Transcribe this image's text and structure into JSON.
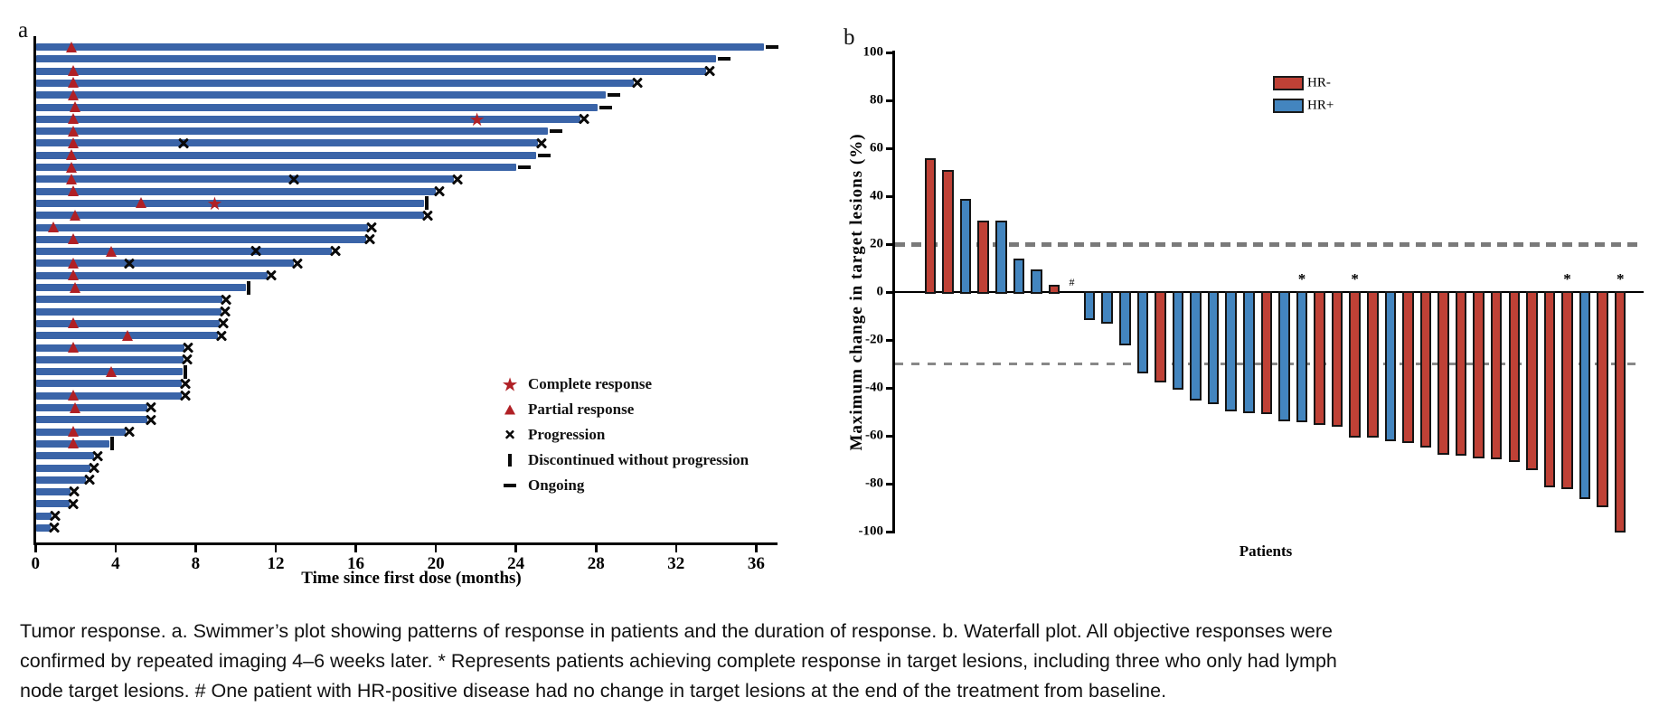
{
  "panel_a_label": "a",
  "panel_b_label": "b",
  "colors": {
    "swim_bar_blue": "#3a64a8",
    "response_red": "#b02025",
    "marker_black": "#0a0a0a",
    "wf_red": "#bf4136",
    "wf_blue": "#4385bf",
    "ref_line_gray": "#7a7a7a",
    "axis_black": "#000000"
  },
  "chart_data": [
    {
      "type": "swimmer",
      "title": "",
      "xlabel": "Time since first dose (months)",
      "x_ticks": [
        0,
        4,
        8,
        12,
        16,
        20,
        24,
        28,
        32,
        36
      ],
      "xlim": [
        0,
        37
      ],
      "legend_position": "right-middle",
      "legend": [
        {
          "icon": "star",
          "label": "Complete response"
        },
        {
          "icon": "triangle",
          "label": "Partial response"
        },
        {
          "icon": "x",
          "label": "Progression"
        },
        {
          "icon": "bar-vertical",
          "label": "Discontinued without progression"
        },
        {
          "icon": "dash",
          "label": "Ongoing"
        }
      ],
      "rows": [
        {
          "len": 36.4,
          "pr": 1.8,
          "cr": null,
          "xs": [],
          "end": "ongoing"
        },
        {
          "len": 34.0,
          "pr": null,
          "cr": null,
          "xs": [],
          "end": "ongoing"
        },
        {
          "len": 33.5,
          "pr": 1.9,
          "cr": null,
          "xs": [],
          "end": "x"
        },
        {
          "len": 29.9,
          "pr": 1.9,
          "cr": null,
          "xs": [],
          "end": "x"
        },
        {
          "len": 28.5,
          "pr": 1.9,
          "cr": null,
          "xs": [],
          "end": "ongoing"
        },
        {
          "len": 28.1,
          "pr": 2.0,
          "cr": null,
          "xs": [],
          "end": "ongoing"
        },
        {
          "len": 27.2,
          "pr": 1.9,
          "cr": 22.1,
          "xs": [],
          "end": "x"
        },
        {
          "len": 25.6,
          "pr": 1.9,
          "cr": null,
          "xs": [],
          "end": "ongoing"
        },
        {
          "len": 25.1,
          "pr": 1.9,
          "cr": null,
          "xs": [
            7.4
          ],
          "end": "x"
        },
        {
          "len": 25.0,
          "pr": 1.8,
          "cr": null,
          "xs": [],
          "end": "ongoing"
        },
        {
          "len": 24.0,
          "pr": 1.8,
          "cr": null,
          "xs": [],
          "end": "ongoing"
        },
        {
          "len": 20.9,
          "pr": 1.8,
          "cr": null,
          "xs": [
            12.9
          ],
          "end": "x"
        },
        {
          "len": 20.0,
          "pr": 1.9,
          "cr": null,
          "xs": [],
          "end": "x"
        },
        {
          "len": 19.4,
          "pr": 5.3,
          "cr": 9.0,
          "xs": [],
          "end": "disc"
        },
        {
          "len": 19.4,
          "pr": 2.0,
          "cr": null,
          "xs": [],
          "end": "x"
        },
        {
          "len": 16.6,
          "pr": 0.9,
          "cr": null,
          "xs": [],
          "end": "x"
        },
        {
          "len": 16.5,
          "pr": 1.9,
          "cr": null,
          "xs": [],
          "end": "x"
        },
        {
          "len": 14.8,
          "pr": 3.8,
          "cr": null,
          "xs": [
            11.0
          ],
          "end": "x"
        },
        {
          "len": 12.9,
          "pr": 1.9,
          "cr": null,
          "xs": [
            4.7
          ],
          "end": "x"
        },
        {
          "len": 11.6,
          "pr": 1.9,
          "cr": null,
          "xs": [],
          "end": "x"
        },
        {
          "len": 10.5,
          "pr": 2.0,
          "cr": null,
          "xs": [],
          "end": "disc"
        },
        {
          "len": 9.35,
          "pr": null,
          "cr": null,
          "xs": [],
          "end": "x"
        },
        {
          "len": 9.3,
          "pr": null,
          "cr": null,
          "xs": [],
          "end": "x"
        },
        {
          "len": 9.2,
          "pr": 1.9,
          "cr": null,
          "xs": [],
          "end": "x"
        },
        {
          "len": 9.1,
          "pr": 4.6,
          "cr": null,
          "xs": [],
          "end": "x"
        },
        {
          "len": 7.45,
          "pr": 1.9,
          "cr": null,
          "xs": [],
          "end": "x"
        },
        {
          "len": 7.4,
          "pr": null,
          "cr": null,
          "xs": [],
          "end": "x"
        },
        {
          "len": 7.35,
          "pr": 3.8,
          "cr": null,
          "xs": [],
          "end": "disc"
        },
        {
          "len": 7.3,
          "pr": null,
          "cr": null,
          "xs": [],
          "end": "x"
        },
        {
          "len": 7.3,
          "pr": 1.9,
          "cr": null,
          "xs": [],
          "end": "x"
        },
        {
          "len": 5.6,
          "pr": 2.0,
          "cr": null,
          "xs": [],
          "end": "x"
        },
        {
          "len": 5.6,
          "pr": null,
          "cr": null,
          "xs": [],
          "end": "x"
        },
        {
          "len": 4.5,
          "pr": 1.9,
          "cr": null,
          "xs": [],
          "end": "x"
        },
        {
          "len": 3.7,
          "pr": 1.9,
          "cr": null,
          "xs": [],
          "end": "disc"
        },
        {
          "len": 2.9,
          "pr": null,
          "cr": null,
          "xs": [],
          "end": "x"
        },
        {
          "len": 2.75,
          "pr": null,
          "cr": null,
          "xs": [],
          "end": "x"
        },
        {
          "len": 2.5,
          "pr": null,
          "cr": null,
          "xs": [],
          "end": "x"
        },
        {
          "len": 1.75,
          "pr": null,
          "cr": null,
          "xs": [],
          "end": "x"
        },
        {
          "len": 1.7,
          "pr": null,
          "cr": null,
          "xs": [],
          "end": "x"
        },
        {
          "len": 0.8,
          "pr": null,
          "cr": null,
          "xs": [],
          "end": "x"
        },
        {
          "len": 0.75,
          "pr": null,
          "cr": null,
          "xs": [],
          "end": "x"
        }
      ]
    },
    {
      "type": "bar",
      "title": "",
      "xlabel": "Patients",
      "ylabel": "Maximum change in target lesions (%)",
      "ylim": [
        -100,
        100
      ],
      "y_ticks": [
        100,
        80,
        60,
        40,
        20,
        0,
        -20,
        -40,
        -60,
        -80,
        -100
      ],
      "reference_lines": [
        20,
        -30
      ],
      "legend_position": "top-right-inside",
      "legend": [
        {
          "label": "HR-",
          "color": "#bf4136"
        },
        {
          "label": "HR+",
          "color": "#4385bf"
        }
      ],
      "annotations": {
        "star_symbol": "*",
        "hash_symbol": "#"
      },
      "bars": [
        {
          "v": 56,
          "group": "HR-"
        },
        {
          "v": 51,
          "group": "HR-"
        },
        {
          "v": 39,
          "group": "HR+"
        },
        {
          "v": 30,
          "group": "HR-"
        },
        {
          "v": 30,
          "group": "HR+"
        },
        {
          "v": 14,
          "group": "HR+"
        },
        {
          "v": 9.5,
          "group": "HR+"
        },
        {
          "v": 3,
          "group": "HR-"
        },
        {
          "v": 0,
          "group": "HR+",
          "hash": true
        },
        {
          "v": -11.5,
          "group": "HR+"
        },
        {
          "v": -13,
          "group": "HR+"
        },
        {
          "v": -22,
          "group": "HR+"
        },
        {
          "v": -33.5,
          "group": "HR+"
        },
        {
          "v": -37.5,
          "group": "HR-"
        },
        {
          "v": -40.5,
          "group": "HR+"
        },
        {
          "v": -45,
          "group": "HR+"
        },
        {
          "v": -46.5,
          "group": "HR+"
        },
        {
          "v": -49.5,
          "group": "HR+"
        },
        {
          "v": -50,
          "group": "HR+"
        },
        {
          "v": -50.5,
          "group": "HR-"
        },
        {
          "v": -53.5,
          "group": "HR+"
        },
        {
          "v": -54,
          "group": "HR+",
          "star": true
        },
        {
          "v": -55,
          "group": "HR-"
        },
        {
          "v": -56,
          "group": "HR-"
        },
        {
          "v": -60.5,
          "group": "HR-",
          "star": true
        },
        {
          "v": -60.5,
          "group": "HR-"
        },
        {
          "v": -62,
          "group": "HR+"
        },
        {
          "v": -62.5,
          "group": "HR-"
        },
        {
          "v": -64.5,
          "group": "HR-"
        },
        {
          "v": -67.5,
          "group": "HR-"
        },
        {
          "v": -68,
          "group": "HR-"
        },
        {
          "v": -69,
          "group": "HR-"
        },
        {
          "v": -69.5,
          "group": "HR-"
        },
        {
          "v": -70.5,
          "group": "HR-"
        },
        {
          "v": -74,
          "group": "HR-"
        },
        {
          "v": -81,
          "group": "HR-"
        },
        {
          "v": -82,
          "group": "HR-",
          "star": true
        },
        {
          "v": -86,
          "group": "HR+"
        },
        {
          "v": -89.5,
          "group": "HR-"
        },
        {
          "v": -100,
          "group": "HR-",
          "star": true
        }
      ]
    }
  ],
  "caption": {
    "lines": [
      "Tumor response. a. Swimmer’s plot showing patterns of response in patients and the duration of response. b. Waterfall plot. All objective responses were",
      "confirmed by repeated imaging 4–6 weeks later. * Represents patients achieving complete response in target lesions, including three who only had lymph",
      "node target lesions. # One patient with HR-positive disease had no change in target lesions at the end of the treatment from baseline."
    ]
  }
}
